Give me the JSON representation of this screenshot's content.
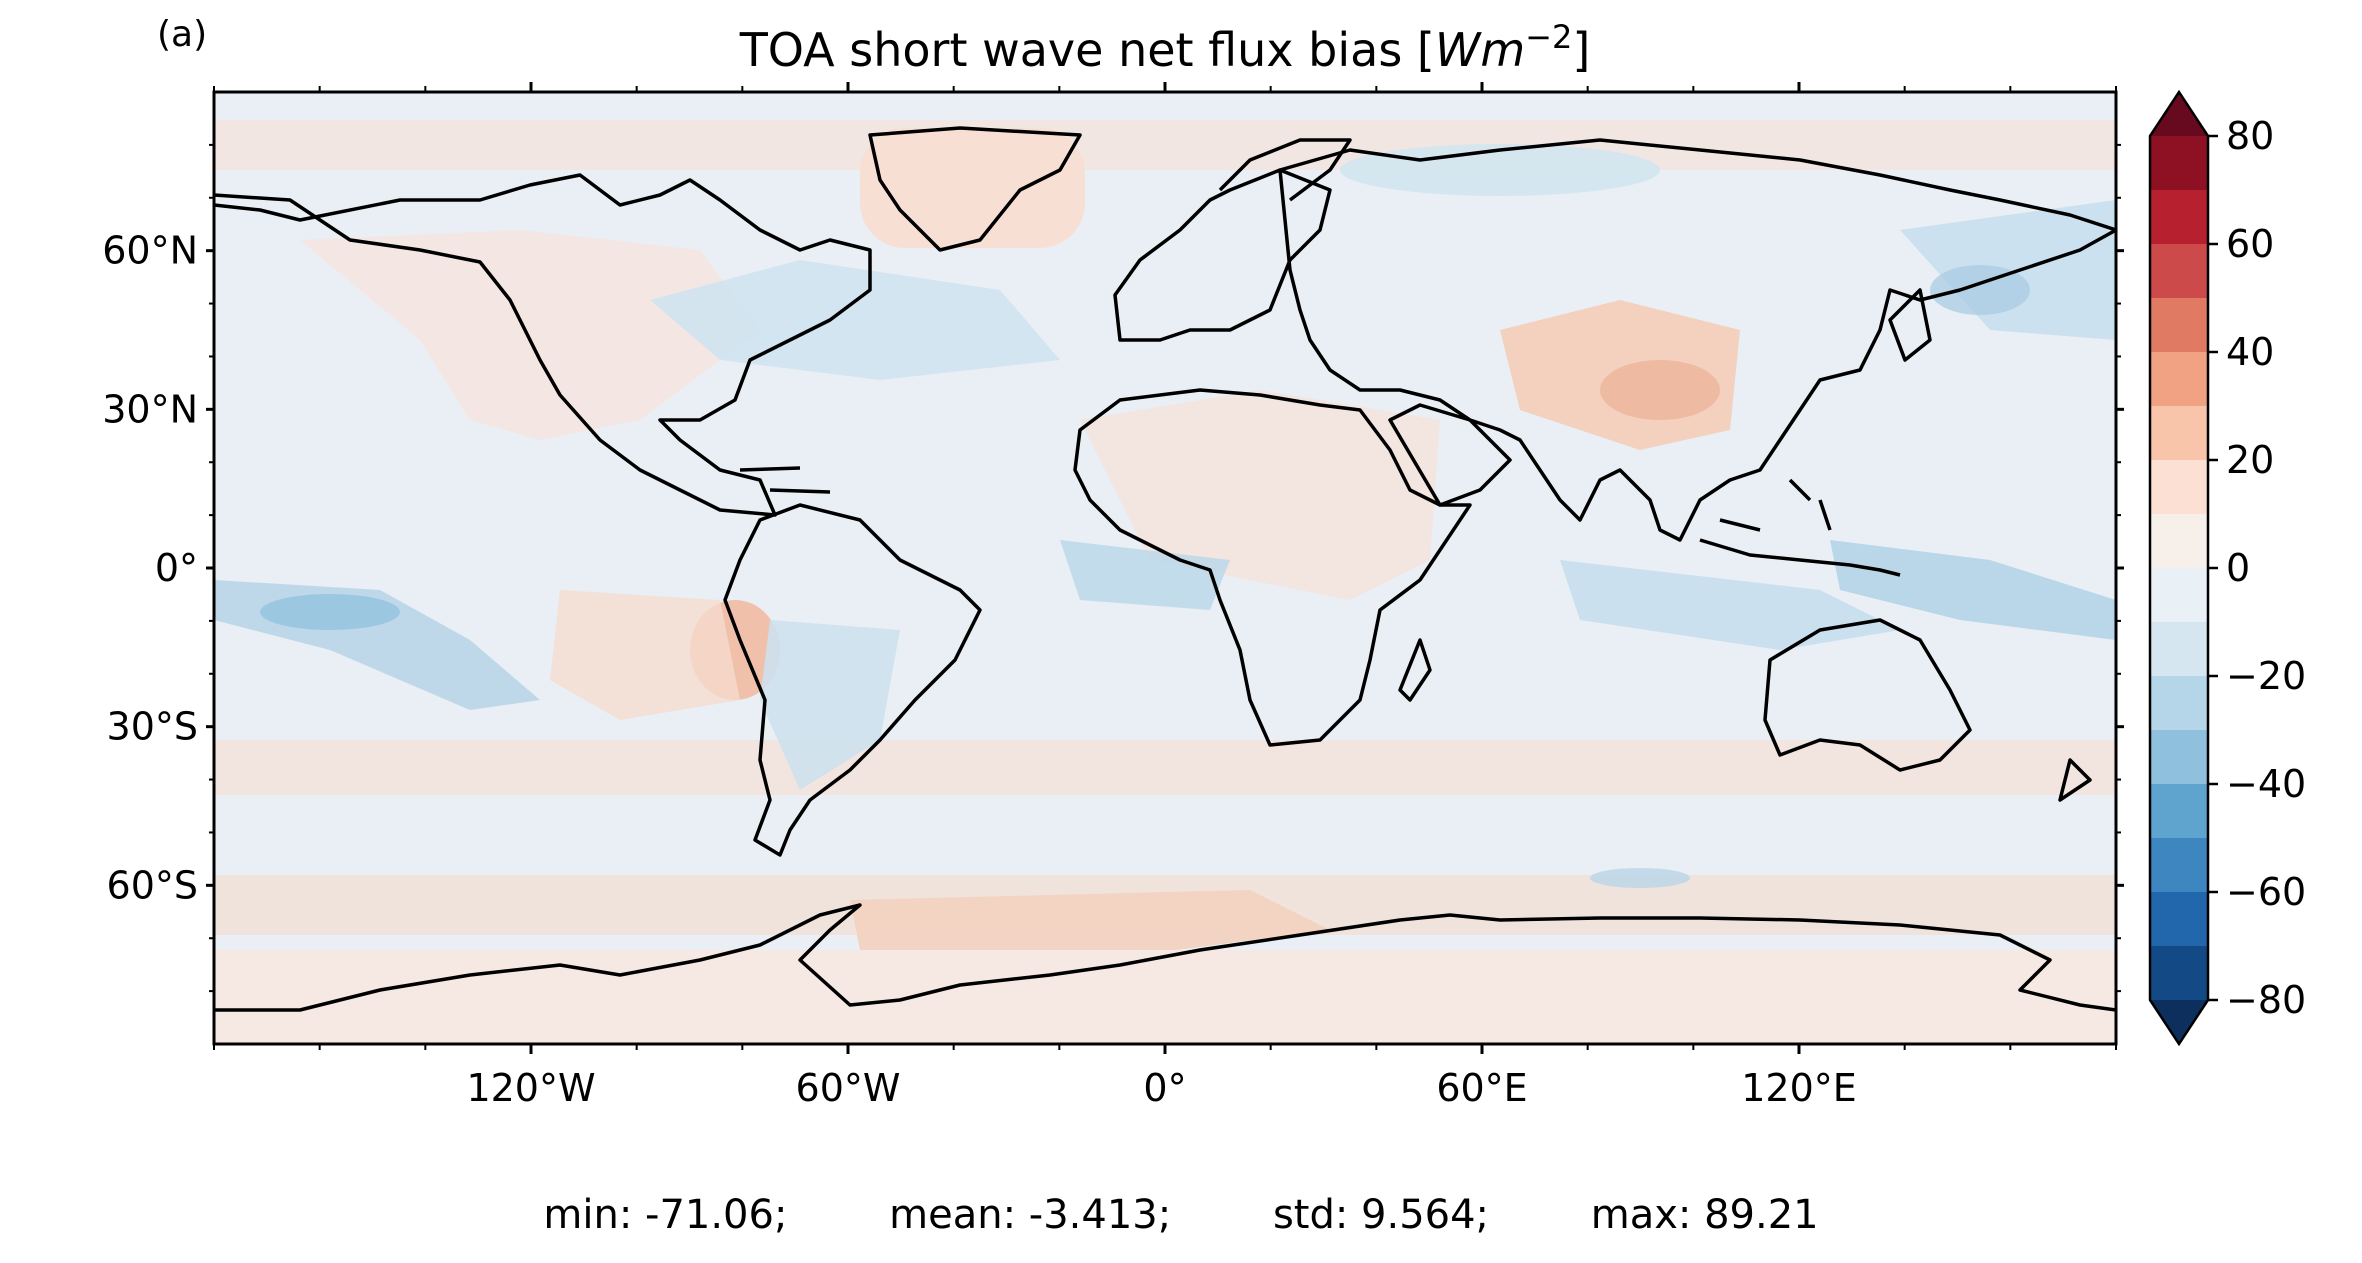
{
  "panel_label": "(a)",
  "title_main": "TOA short wave net flux bias ",
  "title_unit_open": "[",
  "title_unit_base": "Wm",
  "title_unit_exp": "−2",
  "title_unit_close": "]",
  "axes": {
    "lat_ticks": [
      {
        "value": 60,
        "label": "60°N"
      },
      {
        "value": 30,
        "label": "30°N"
      },
      {
        "value": 0,
        "label": "0°"
      },
      {
        "value": -30,
        "label": "30°S"
      },
      {
        "value": -60,
        "label": "60°S"
      }
    ],
    "lon_ticks": [
      {
        "value": -120,
        "label": "120°W"
      },
      {
        "value": -60,
        "label": "60°W"
      },
      {
        "value": 0,
        "label": "0°"
      },
      {
        "value": 60,
        "label": "60°E"
      },
      {
        "value": 120,
        "label": "120°E"
      }
    ],
    "lon_range": [
      -180,
      180
    ],
    "lat_range": [
      -90,
      90
    ]
  },
  "colorbar": {
    "tick_labels": [
      "80",
      "60",
      "40",
      "20",
      "0",
      "−20",
      "−40",
      "−60",
      "−80"
    ],
    "tick_values": [
      80,
      60,
      40,
      20,
      0,
      -20,
      -40,
      -60,
      -80
    ],
    "range": [
      -80,
      80
    ],
    "step": 10,
    "extend": "both",
    "colors_top_to_bottom": [
      "#8e1023",
      "#b7202f",
      "#cc4a4a",
      "#e07a63",
      "#f0a283",
      "#f8c4aa",
      "#fbe0d3",
      "#f7efea",
      "#eaf1f6",
      "#d5e6f1",
      "#b5d5e8",
      "#8fc1de",
      "#5fa3cf",
      "#3d86c0",
      "#2266ac",
      "#134a86"
    ],
    "triangle_top": "#670a1f",
    "triangle_bottom": "#0c2f5e"
  },
  "stats": {
    "min": "min: -71.06;",
    "mean": "mean: -3.413;",
    "std": "std: 9.564;",
    "max": "max: 89.21"
  }
}
